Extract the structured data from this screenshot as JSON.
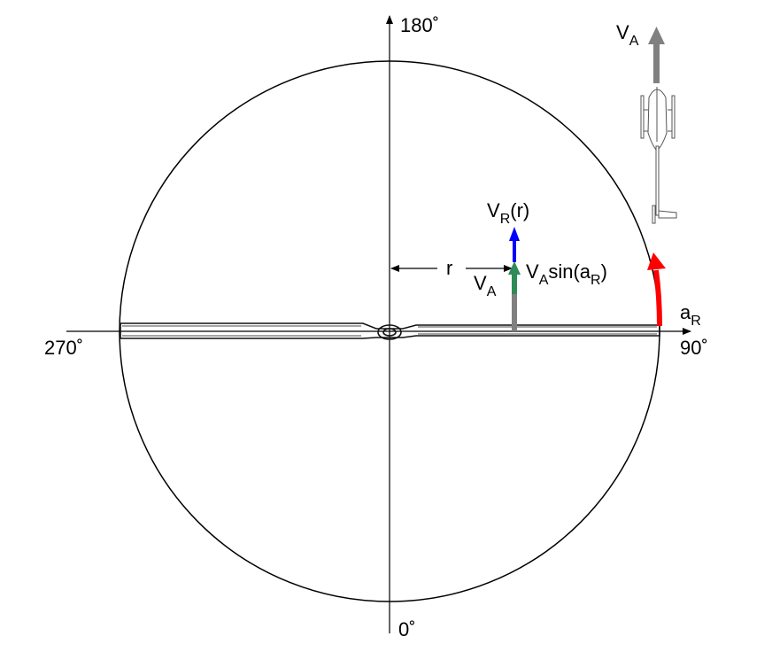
{
  "angles": {
    "top": "180˚",
    "bottom": "0˚",
    "left": "270˚",
    "right": "90˚"
  },
  "labels": {
    "radius": "r",
    "rotor_velocity": {
      "main": "V",
      "sub": "R",
      "suffix": "(r)"
    },
    "advance_component": {
      "main": "V",
      "sub": "A",
      "mid": "sin(a",
      "sub2": "R",
      "suffix": ")"
    },
    "advance_velocity_small": {
      "main": "V",
      "sub": "A"
    },
    "azimuth": {
      "main": "a",
      "sub": "R"
    },
    "helicopter_velocity": {
      "main": "V",
      "sub": "A"
    }
  },
  "colors": {
    "rotor_velocity": "#0000ff",
    "advance_component": "#2e8b57",
    "azimuth_arrow": "#ff0000",
    "helicopter_arrow": "#808080"
  },
  "icons": [
    "rotor-blade",
    "helicopter-top-view"
  ]
}
